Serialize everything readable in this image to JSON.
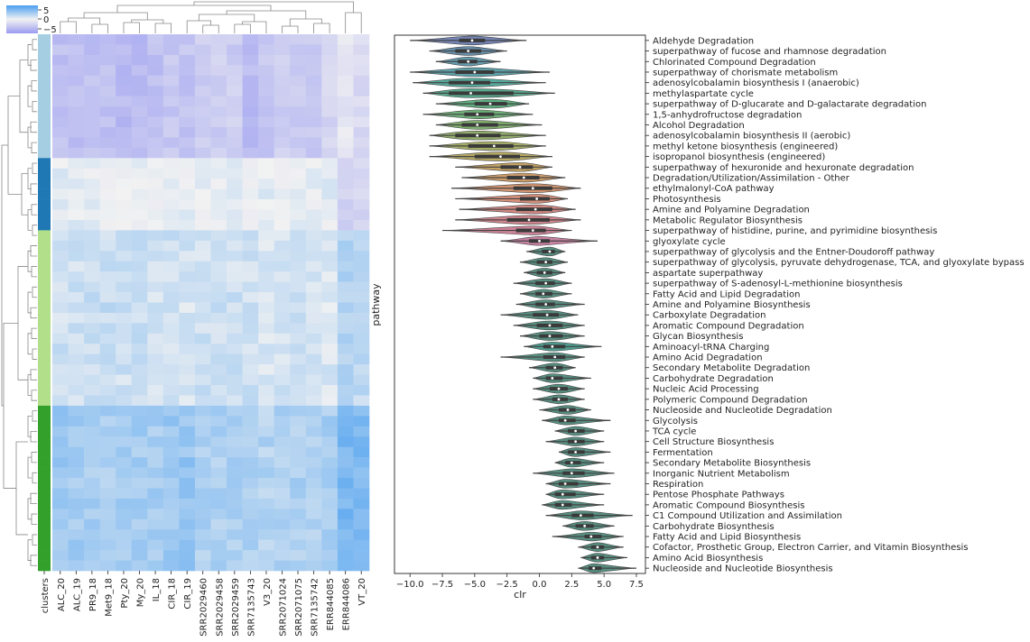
{
  "chart_data": [
    {
      "type": "heatmap",
      "title": "",
      "colorbar": {
        "ticks": [
          "5",
          "0",
          "−5"
        ],
        "range": [
          -7,
          7
        ]
      },
      "columns": [
        "clusters",
        "ALC_20",
        "ALC_19",
        "PR9_18",
        "Met9_18",
        "Pty_20",
        "My_20",
        "IL_18",
        "CIR_18",
        "CIR_19",
        "SRR2029460",
        "SRR2029458",
        "SRR2029459",
        "SRR7135743",
        "V3_20",
        "SRR2071024",
        "SRR2071075",
        "SRR7135742",
        "ERR844085",
        "ERR844086",
        "VT_20"
      ],
      "cluster_colors": [
        "#a6cee3",
        "#1f78b4",
        "#b2df8a",
        "#33a02c"
      ],
      "row_clusters": [
        0,
        0,
        0,
        0,
        0,
        0,
        0,
        0,
        0,
        0,
        0,
        0,
        1,
        1,
        1,
        1,
        1,
        1,
        1,
        2,
        2,
        2,
        2,
        2,
        2,
        2,
        2,
        2,
        2,
        2,
        2,
        2,
        2,
        2,
        2,
        2,
        3,
        3,
        3,
        3,
        3,
        3,
        3,
        3,
        3,
        3,
        3,
        3,
        3,
        3,
        3,
        3
      ],
      "cluster_profiles": [
        [
          -4,
          -4,
          -4,
          -4,
          -4.5,
          -4.5,
          -4,
          -3.5,
          -3.8,
          -3,
          -3,
          -3,
          -4.5,
          -3.5,
          -3,
          -3,
          -3.5,
          -2.5,
          -1,
          -2
        ],
        [
          0.5,
          0.5,
          0.3,
          0.3,
          0.2,
          0.2,
          -0.2,
          0.2,
          0.3,
          0.2,
          0.2,
          0.5,
          0.2,
          0.5,
          0.3,
          0.2,
          0.3,
          0.5,
          -2.5,
          -2.5
        ],
        [
          1.5,
          1.5,
          1.8,
          1.8,
          1.5,
          1.6,
          1.3,
          1.5,
          1.2,
          1.5,
          1.5,
          1.5,
          1.5,
          1.2,
          1.4,
          1.5,
          1.2,
          1.0,
          2.5,
          2.0
        ],
        [
          3.5,
          3.2,
          3.0,
          3.0,
          3.2,
          3.2,
          3.0,
          3.6,
          3.8,
          2.8,
          2.8,
          2.8,
          2.8,
          2.6,
          2.8,
          2.8,
          2.8,
          3.0,
          5.0,
          4.8
        ]
      ]
    },
    {
      "type": "violin",
      "xlabel": "clr",
      "ylabel": "pathway",
      "xlim": [
        -11.2,
        8.2
      ],
      "xticks": [
        -10.0,
        -7.5,
        -5.0,
        -2.5,
        0.0,
        2.5,
        5.0,
        7.5
      ],
      "xtick_labels": [
        "−10.0",
        "−7.5",
        "−5.0",
        "−2.5",
        "0.0",
        "2.5",
        "5.0",
        "7.5"
      ],
      "categories": [
        "Aldehyde Degradation",
        "superpathway of fucose and rhamnose degradation",
        "Chlorinated Compound Degradation",
        "superpathway of chorismate metabolism",
        "adenosylcobalamin biosynthesis I (anaerobic)",
        "methylaspartate cycle",
        "superpathway of D-glucarate and D-galactarate degradation",
        "1,5-anhydrofructose degradation",
        "Alcohol Degradation",
        "adenosylcobalamin biosynthesis II (aerobic)",
        "methyl ketone biosynthesis (engineered)",
        "isopropanol biosynthesis (engineered)",
        "superpathway of hexuronide and hexuronate degradation",
        "Degradation/Utilization/Assimilation - Other",
        "ethylmalonyl-CoA pathway",
        "Photosynthesis",
        "Amine and Polyamine Degradation",
        "Metabolic Regulator Biosynthesis",
        "superpathway of histidine, purine, and pyrimidine biosynthesis",
        "glyoxylate cycle",
        "superpathway of glycolysis and the Entner-Doudoroff pathway",
        "superpathway of glycolysis, pyruvate dehydrogenase, TCA, and glyoxylate bypass",
        "aspartate superpathway",
        "superpathway of S-adenosyl-L-methionine biosynthesis",
        "Fatty Acid and Lipid Degradation",
        "Amine and Polyamine Biosynthesis",
        "Carboxylate Degradation",
        "Aromatic Compound Degradation",
        "Glycan Biosynthesis",
        "Aminoacyl-tRNA Charging",
        "Amino Acid Degradation",
        "Secondary Metabolite Degradation",
        "Carbohydrate Degradation",
        "Nucleic Acid Processing",
        "Polymeric Compound Degradation",
        "Nucleoside and Nucleotide Degradation",
        "Glycolysis",
        "TCA cycle",
        "Cell Structure Biosynthesis",
        "Fermentation",
        "Secondary Metabolite Biosynthesis",
        "Inorganic Nutrient Metabolism",
        "Respiration",
        "Pentose Phosphate Pathways",
        "Aromatic Compound Biosynthesis",
        "C1 Compound Utilization and Assimilation",
        "Carbohydrate Biosynthesis",
        "Fatty Acid and Lipid Biosynthesis",
        "Cofactor, Prosthetic Group, Electron Carrier, and Vitamin Biosynthesis",
        "Amino Acid Biosynthesis",
        "Nucleoside and Nucleotide Biosynthesis"
      ],
      "series": [
        {
          "median": -5.2,
          "min": -10.0,
          "max": -1.0,
          "q1": -6.2,
          "q3": -4.2,
          "color": "#5b6fa8"
        },
        {
          "median": -5.5,
          "min": -8.5,
          "max": -2.5,
          "q1": -6.5,
          "q3": -4.5,
          "color": "#4e7a9a"
        },
        {
          "median": -5.5,
          "min": -8.0,
          "max": -3.0,
          "q1": -6.3,
          "q3": -4.8,
          "color": "#4a8aa0"
        },
        {
          "median": -5.0,
          "min": -10.0,
          "max": 0.8,
          "q1": -6.5,
          "q3": -3.5,
          "color": "#3f8f9a"
        },
        {
          "median": -5.2,
          "min": -9.8,
          "max": 0.5,
          "q1": -7.0,
          "q3": -3.8,
          "color": "#3a9a8a"
        },
        {
          "median": -5.3,
          "min": -9.0,
          "max": 1.2,
          "q1": -7.0,
          "q3": -2.0,
          "color": "#3a9a7a"
        },
        {
          "median": -3.8,
          "min": -8.0,
          "max": -0.8,
          "q1": -5.0,
          "q3": -2.5,
          "color": "#43a06a"
        },
        {
          "median": -4.8,
          "min": -9.0,
          "max": -0.5,
          "q1": -5.8,
          "q3": -3.5,
          "color": "#55a060"
        },
        {
          "median": -4.8,
          "min": -8.0,
          "max": 0.2,
          "q1": -6.0,
          "q3": -3.2,
          "color": "#6aa055"
        },
        {
          "median": -4.8,
          "min": -8.5,
          "max": 0.5,
          "q1": -6.5,
          "q3": -3.0,
          "color": "#80a050"
        },
        {
          "median": -3.5,
          "min": -8.5,
          "max": 0.5,
          "q1": -5.5,
          "q3": -2.0,
          "color": "#95a04c"
        },
        {
          "median": -3.0,
          "min": -8.5,
          "max": 1.0,
          "q1": -5.0,
          "q3": -1.5,
          "color": "#a89a4a"
        },
        {
          "median": -1.5,
          "min": -6.5,
          "max": 1.0,
          "q1": -3.0,
          "q3": -0.5,
          "color": "#b8924a"
        },
        {
          "median": -1.2,
          "min": -6.0,
          "max": 2.0,
          "q1": -2.5,
          "q3": 0.0,
          "color": "#c28a50"
        },
        {
          "median": -0.5,
          "min": -6.8,
          "max": 3.2,
          "q1": -2.0,
          "q3": 1.0,
          "color": "#c98258"
        },
        {
          "median": -0.2,
          "min": -6.5,
          "max": 2.2,
          "q1": -1.5,
          "q3": 0.8,
          "color": "#cc7a62"
        },
        {
          "median": -0.3,
          "min": -6.2,
          "max": 2.8,
          "q1": -1.8,
          "q3": 1.0,
          "color": "#cc746e"
        },
        {
          "median": -0.8,
          "min": -6.5,
          "max": 3.2,
          "q1": -2.5,
          "q3": 0.8,
          "color": "#c9707a"
        },
        {
          "median": -0.5,
          "min": -7.5,
          "max": 2.5,
          "q1": -1.8,
          "q3": 0.5,
          "color": "#c46d86"
        },
        {
          "median": 0.0,
          "min": -3.0,
          "max": 4.5,
          "q1": -0.8,
          "q3": 0.8,
          "color": "#bd6b92"
        },
        {
          "median": 0.8,
          "min": -1.0,
          "max": 2.0,
          "q1": 0.2,
          "q3": 1.2,
          "color": "#3a7a6a"
        },
        {
          "median": 0.5,
          "min": -1.5,
          "max": 2.2,
          "q1": -0.2,
          "q3": 1.0,
          "color": "#3a7a6a"
        },
        {
          "median": 0.4,
          "min": -1.2,
          "max": 2.0,
          "q1": -0.2,
          "q3": 1.0,
          "color": "#3a7a6a"
        },
        {
          "median": 0.5,
          "min": -2.0,
          "max": 2.5,
          "q1": -0.3,
          "q3": 1.2,
          "color": "#3a7a6a"
        },
        {
          "median": 0.3,
          "min": -1.5,
          "max": 2.5,
          "q1": -0.3,
          "q3": 1.0,
          "color": "#3a7a6a"
        },
        {
          "median": 0.5,
          "min": -1.8,
          "max": 3.5,
          "q1": -0.3,
          "q3": 1.2,
          "color": "#3a7a6a"
        },
        {
          "median": 0.6,
          "min": -3.0,
          "max": 3.0,
          "q1": -0.5,
          "q3": 1.5,
          "color": "#3a7a6a"
        },
        {
          "median": 0.8,
          "min": -2.0,
          "max": 3.5,
          "q1": -0.2,
          "q3": 1.8,
          "color": "#3a7a6a"
        },
        {
          "median": 0.8,
          "min": -1.5,
          "max": 3.5,
          "q1": 0.0,
          "q3": 1.8,
          "color": "#3a7a6a"
        },
        {
          "median": 1.0,
          "min": -1.2,
          "max": 4.8,
          "q1": 0.3,
          "q3": 2.0,
          "color": "#2e8a7a"
        },
        {
          "median": 1.2,
          "min": -3.0,
          "max": 3.5,
          "q1": 0.3,
          "q3": 2.0,
          "color": "#3a7a6a"
        },
        {
          "median": 1.2,
          "min": -0.8,
          "max": 2.8,
          "q1": 0.5,
          "q3": 1.8,
          "color": "#3a7a6a"
        },
        {
          "median": 1.0,
          "min": -0.5,
          "max": 4.0,
          "q1": 0.5,
          "q3": 1.8,
          "color": "#3a7a6a"
        },
        {
          "median": 1.5,
          "min": -0.5,
          "max": 3.5,
          "q1": 0.8,
          "q3": 2.2,
          "color": "#3a7a6a"
        },
        {
          "median": 1.5,
          "min": -0.5,
          "max": 3.5,
          "q1": 1.0,
          "q3": 2.2,
          "color": "#3a7a6a"
        },
        {
          "median": 2.2,
          "min": 0.0,
          "max": 4.0,
          "q1": 1.5,
          "q3": 2.8,
          "color": "#3a7a6a"
        },
        {
          "median": 2.0,
          "min": 0.2,
          "max": 5.5,
          "q1": 1.5,
          "q3": 2.8,
          "color": "#3a7a6a"
        },
        {
          "median": 2.8,
          "min": 1.2,
          "max": 5.0,
          "q1": 2.2,
          "q3": 3.5,
          "color": "#3a7a6a"
        },
        {
          "median": 2.8,
          "min": 0.5,
          "max": 5.0,
          "q1": 2.2,
          "q3": 3.5,
          "color": "#3a7a6a"
        },
        {
          "median": 2.8,
          "min": 1.5,
          "max": 5.5,
          "q1": 2.2,
          "q3": 3.5,
          "color": "#3a7a6a"
        },
        {
          "median": 2.5,
          "min": 1.2,
          "max": 5.0,
          "q1": 2.0,
          "q3": 3.2,
          "color": "#3a7a6a"
        },
        {
          "median": 2.5,
          "min": -0.5,
          "max": 5.8,
          "q1": 1.8,
          "q3": 3.5,
          "color": "#3a7a6a"
        },
        {
          "median": 2.0,
          "min": 0.5,
          "max": 5.5,
          "q1": 1.5,
          "q3": 3.0,
          "color": "#3a7a6a"
        },
        {
          "median": 1.8,
          "min": 0.5,
          "max": 5.0,
          "q1": 1.2,
          "q3": 2.8,
          "color": "#3a7a6a"
        },
        {
          "median": 1.8,
          "min": 0.2,
          "max": 5.0,
          "q1": 1.2,
          "q3": 2.5,
          "color": "#3a7a6a"
        },
        {
          "median": 3.2,
          "min": 0.5,
          "max": 7.2,
          "q1": 2.5,
          "q3": 4.2,
          "color": "#3a7a6a"
        },
        {
          "median": 3.5,
          "min": 1.8,
          "max": 5.8,
          "q1": 2.8,
          "q3": 4.2,
          "color": "#3a7a6a"
        },
        {
          "median": 4.0,
          "min": 1.0,
          "max": 6.5,
          "q1": 3.5,
          "q3": 4.8,
          "color": "#3a7a6a"
        },
        {
          "median": 4.5,
          "min": 3.0,
          "max": 6.5,
          "q1": 4.0,
          "q3": 5.0,
          "color": "#3a7a6a"
        },
        {
          "median": 4.5,
          "min": 3.2,
          "max": 6.8,
          "q1": 4.0,
          "q3": 5.0,
          "color": "#3a7a6a"
        },
        {
          "median": 4.2,
          "min": 3.0,
          "max": 7.5,
          "q1": 3.8,
          "q3": 4.8,
          "color": "#3a7a6a"
        }
      ]
    }
  ]
}
